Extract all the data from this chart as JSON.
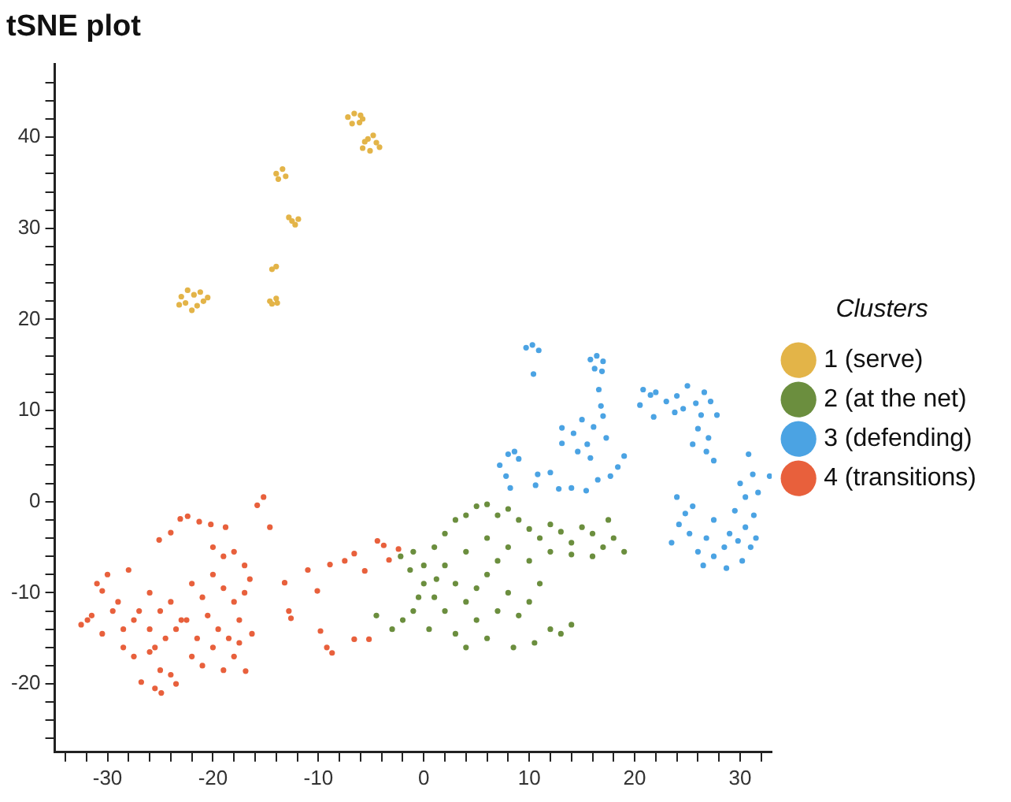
{
  "chart_data": {
    "type": "scatter",
    "title": "tSNE plot",
    "legend_title": "Clusters",
    "legend": "right",
    "grid": false,
    "marker": "circle",
    "xlim": [
      -35,
      33
    ],
    "ylim": [
      -27.5,
      48
    ],
    "xticks": [
      {
        "value": -34,
        "label": null
      },
      {
        "value": -32,
        "label": null
      },
      -30,
      {
        "value": -28,
        "label": null
      },
      {
        "value": -26,
        "label": null
      },
      {
        "value": -24,
        "label": null
      },
      {
        "value": -22,
        "label": null
      },
      -20,
      {
        "value": -18,
        "label": null
      },
      {
        "value": -16,
        "label": null
      },
      {
        "value": -14,
        "label": null
      },
      {
        "value": -12,
        "label": null
      },
      -10,
      {
        "value": -8,
        "label": null
      },
      {
        "value": -6,
        "label": null
      },
      {
        "value": -4,
        "label": null
      },
      {
        "value": -2,
        "label": null
      },
      0,
      {
        "value": 2,
        "label": null
      },
      {
        "value": 4,
        "label": null
      },
      {
        "value": 6,
        "label": null
      },
      {
        "value": 8,
        "label": null
      },
      10,
      {
        "value": 12,
        "label": null
      },
      {
        "value": 14,
        "label": null
      },
      {
        "value": 16,
        "label": null
      },
      {
        "value": 18,
        "label": null
      },
      20,
      {
        "value": 22,
        "label": null
      },
      {
        "value": 24,
        "label": null
      },
      {
        "value": 26,
        "label": null
      },
      {
        "value": 28,
        "label": null
      },
      30,
      {
        "value": 32,
        "label": null
      }
    ],
    "yticks": [
      {
        "value": -26,
        "label": null
      },
      {
        "value": -24,
        "label": null
      },
      {
        "value": -22,
        "label": null
      },
      -20,
      {
        "value": -18,
        "label": null
      },
      {
        "value": -16,
        "label": null
      },
      {
        "value": -14,
        "label": null
      },
      {
        "value": -12,
        "label": null
      },
      -10,
      {
        "value": -8,
        "label": null
      },
      {
        "value": -6,
        "label": null
      },
      {
        "value": -4,
        "label": null
      },
      {
        "value": -2,
        "label": null
      },
      0,
      {
        "value": 2,
        "label": null
      },
      {
        "value": 4,
        "label": null
      },
      {
        "value": 6,
        "label": null
      },
      {
        "value": 8,
        "label": null
      },
      10,
      {
        "value": 12,
        "label": null
      },
      {
        "value": 14,
        "label": null
      },
      {
        "value": 16,
        "label": null
      },
      {
        "value": 18,
        "label": null
      },
      20,
      {
        "value": 22,
        "label": null
      },
      {
        "value": 24,
        "label": null
      },
      {
        "value": 26,
        "label": null
      },
      {
        "value": 28,
        "label": null
      },
      30,
      {
        "value": 32,
        "label": null
      },
      {
        "value": 34,
        "label": null
      },
      {
        "value": 36,
        "label": null
      },
      {
        "value": 38,
        "label": null
      },
      40,
      {
        "value": 42,
        "label": null
      },
      {
        "value": 44,
        "label": null
      },
      {
        "value": 46,
        "label": null
      }
    ],
    "series": [
      {
        "name": "1 (serve)",
        "color": "#e3b448",
        "x": [
          -7.2,
          -6.6,
          -6.0,
          -6.8,
          -6.1,
          -5.8,
          -5.8,
          -5.3,
          -4.8,
          -4.5,
          -5.1,
          -4.2,
          -5.6,
          -14.0,
          -13.4,
          -13.1,
          -13.8,
          -12.8,
          -12.2,
          -11.9,
          -12.5,
          -14.4,
          -14.0,
          -14.6,
          -14.0,
          -13.9,
          -14.4,
          -23.0,
          -22.4,
          -21.8,
          -21.2,
          -20.5,
          -22.6,
          -21.5,
          -20.9,
          -22.0,
          -23.2
        ],
        "values": [
          42.2,
          42.6,
          42.4,
          41.5,
          41.6,
          42.0,
          38.8,
          39.8,
          40.2,
          39.4,
          38.5,
          38.9,
          39.5,
          36.0,
          36.5,
          35.7,
          35.4,
          31.2,
          30.4,
          31.0,
          30.8,
          25.5,
          25.8,
          22.0,
          22.3,
          21.8,
          21.7,
          22.5,
          23.2,
          22.7,
          23.0,
          22.4,
          21.8,
          21.5,
          22.0,
          21.0,
          21.6
        ]
      },
      {
        "name": "2 (at the net)",
        "color": "#6b8e3e",
        "x": [
          -2.2,
          -1,
          0,
          1,
          2,
          3,
          4,
          5,
          6,
          7,
          8,
          9,
          10,
          11,
          12,
          13,
          14,
          15,
          16,
          17,
          18,
          19,
          17.5,
          16,
          14,
          12,
          10,
          8,
          6,
          4,
          2,
          0,
          1,
          -1,
          -2,
          0.5,
          2,
          3,
          4,
          5,
          3,
          4,
          6,
          7,
          8,
          9,
          10,
          8.5,
          10.5,
          12,
          13,
          14,
          6,
          7,
          5,
          11,
          -3,
          -4.5,
          -1.3,
          -0.5,
          1.2
        ],
        "values": [
          -6,
          -5.5,
          -7,
          -5,
          -3.5,
          -2,
          -1.5,
          -0.5,
          -0.3,
          -1.5,
          -0.8,
          -2,
          -3,
          -4,
          -2.5,
          -3.3,
          -4.5,
          -2.8,
          -3.5,
          -5,
          -4,
          -5.5,
          -2,
          -6,
          -5.8,
          -5.5,
          -6.5,
          -5,
          -4,
          -5.5,
          -7,
          -9,
          -10.5,
          -12,
          -13,
          -14,
          -12,
          -9,
          -11,
          -13,
          -14.5,
          -16,
          -15,
          -12,
          -10,
          -12.5,
          -11,
          -16,
          -15.5,
          -14,
          -14.5,
          -13.5,
          -8,
          -6.5,
          -9.5,
          -9,
          -14,
          -12.5,
          -7.5,
          -10.5,
          -8.5
        ]
      },
      {
        "name": "3 (defending)",
        "color": "#4ba3e3",
        "x": [
          9.7,
          10.3,
          10.9,
          10.4,
          15.8,
          16.4,
          17,
          16.2,
          16.9,
          16.6,
          14.2,
          15.0,
          15.5,
          16.1,
          16.8,
          17.3,
          17.0,
          15.8,
          14.6,
          13.1,
          13.1,
          20.8,
          21.5,
          22.0,
          23.0,
          24.0,
          24.6,
          25.0,
          25.8,
          26.3,
          26.6,
          27.2,
          26.0,
          27.0,
          27.8,
          26.8,
          27.5,
          25.5,
          23.8,
          20.5,
          21.8,
          7.2,
          8.0,
          8.6,
          9.0,
          7.8,
          10.8,
          10.6,
          12.8,
          14.0,
          15.4,
          16.5,
          17.7,
          18.4,
          19.0,
          12.0,
          8.2,
          30.8,
          31.2,
          32.8,
          31.7,
          30.5,
          30,
          31.3,
          30.5,
          29.5,
          29,
          28.5,
          30.2,
          31,
          31.5,
          27.5,
          26.8,
          26,
          25.2,
          24.8,
          24.2,
          24.0,
          26.5,
          27.5,
          28.7,
          25.5,
          23.5,
          29.8
        ],
        "values": [
          16.9,
          17.2,
          16.6,
          14.0,
          15.6,
          16,
          15.4,
          14.6,
          14.3,
          12.3,
          7.5,
          9.0,
          6.3,
          8.2,
          10.5,
          7.0,
          9.4,
          4.8,
          5.5,
          8.1,
          6.4,
          12.3,
          11.7,
          12.0,
          11.0,
          11.6,
          10.2,
          12.7,
          10.8,
          9.5,
          12.0,
          11.0,
          8.0,
          7.0,
          9.5,
          5.5,
          4.5,
          6.3,
          9.8,
          10.6,
          9.3,
          4.0,
          5.2,
          5.5,
          4.7,
          2.8,
          3.0,
          1.8,
          1.4,
          1.5,
          1.2,
          2.4,
          2.8,
          3.8,
          5.0,
          3.2,
          1.5,
          5.2,
          3.0,
          2.8,
          1.0,
          0.5,
          2,
          -1.5,
          -2.8,
          -1,
          -3.5,
          -5,
          -6.5,
          -5,
          -4,
          -2,
          -4,
          -5.5,
          -3.5,
          -1.3,
          -2.5,
          0.5,
          -7,
          -6,
          -7.3,
          -0.5,
          -4.5,
          -4.3
        ]
      },
      {
        "name": "4 (transitions)",
        "color": "#e8603c",
        "x": [
          -15.2,
          -15.8,
          -14.6,
          -23.1,
          -22.4,
          -21.3,
          -20.2,
          -18.8,
          -25.1,
          -24,
          -30.5,
          -31.9,
          -26.8,
          -24.9,
          -16.9,
          -16.3,
          -13.2,
          -12.6,
          -10.1,
          -8.9,
          -6.6,
          -4.4,
          -2.4,
          -3.3,
          -5.6,
          -9.8,
          -8.7,
          -6.6,
          -5.2,
          -31,
          -30,
          -29,
          -28,
          -27.5,
          -26,
          -25,
          -24,
          -23,
          -22,
          -21,
          -20,
          -19,
          -18,
          -17,
          -32.5,
          -31.5,
          -30.5,
          -29.5,
          -28.5,
          -27,
          -26,
          -25.5,
          -24.5,
          -23.5,
          -22.5,
          -21.5,
          -20.5,
          -19.5,
          -18.5,
          -17.5,
          -28.5,
          -27.5,
          -26,
          -25,
          -24,
          -22,
          -21,
          -20,
          -19,
          -18,
          -17.5,
          -25.5,
          -23.5,
          -20,
          -19,
          -18,
          -17,
          -16.5,
          -7.5,
          -9.2,
          -11,
          -12.8,
          -3.8
        ],
        "values": [
          0.5,
          -0.4,
          -2.8,
          -1.9,
          -1.6,
          -2.2,
          -2.5,
          -2.8,
          -4.2,
          -3.4,
          -9.8,
          -13.0,
          -19.8,
          -21.0,
          -18.6,
          -14.5,
          -8.9,
          -12.8,
          -9.8,
          -6.9,
          -5.7,
          -4.3,
          -5.2,
          -6.4,
          -7.6,
          -14.2,
          -16.6,
          -15.1,
          -15.1,
          -9,
          -8,
          -11,
          -7.5,
          -13,
          -10,
          -12,
          -11,
          -13,
          -9,
          -10.5,
          -8,
          -9.5,
          -11,
          -10,
          -13.5,
          -12.5,
          -14.5,
          -12,
          -14,
          -12,
          -14,
          -16,
          -15,
          -14,
          -13,
          -15,
          -12.5,
          -14,
          -15,
          -13,
          -16,
          -17,
          -16.5,
          -18.5,
          -19,
          -17,
          -18,
          -16,
          -18.5,
          -17,
          -15.5,
          -20.5,
          -20,
          -5,
          -6,
          -5.5,
          -7,
          -8.5,
          -6.5,
          -16,
          -7.5,
          -12,
          -4.8
        ]
      }
    ]
  }
}
